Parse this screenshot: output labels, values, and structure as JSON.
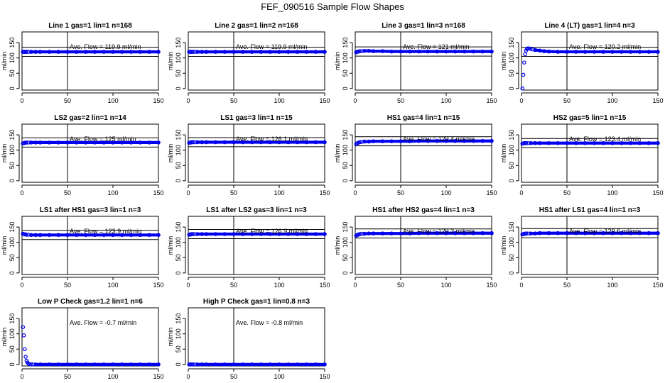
{
  "title": "FEF_090516  Sample Flow Shapes",
  "chart_data": [
    {
      "type": "scatter",
      "title": "Line 1 gas=1 lin=1 n=168",
      "ylabel": "ml/min",
      "xlim": [
        0,
        150
      ],
      "ylim": [
        -5,
        185
      ],
      "xticks": [
        0,
        50,
        100,
        150
      ],
      "yticks": [
        0,
        50,
        100,
        150
      ],
      "vline": 50,
      "hlines": [
        105,
        135
      ],
      "annotation": "Ave. Flow =  119.9  ml/min",
      "series": [
        {
          "x": [
            1,
            2,
            3,
            4,
            5,
            7,
            10,
            15,
            20,
            30,
            40,
            50,
            60,
            70,
            80,
            90,
            100,
            110,
            120,
            130,
            140,
            150
          ],
          "y": [
            119.9,
            119.9,
            119.9,
            119.9,
            119.9,
            119.9,
            119.9,
            119.9,
            119.9,
            119.9,
            119.9,
            119.9,
            119.9,
            119.9,
            119.9,
            119.9,
            119.9,
            119.9,
            119.9,
            119.9,
            119.9,
            119.9
          ]
        }
      ]
    },
    {
      "type": "scatter",
      "title": "Line 2 gas=1 lin=2 n=168",
      "ylabel": "ml/min",
      "xlim": [
        0,
        150
      ],
      "ylim": [
        -5,
        185
      ],
      "xticks": [
        0,
        50,
        100,
        150
      ],
      "yticks": [
        0,
        50,
        100,
        150
      ],
      "vline": 50,
      "hlines": [
        105,
        135
      ],
      "annotation": "Ave. Flow =  119.9  ml/min",
      "series": [
        {
          "x": [
            1,
            2,
            3,
            4,
            5,
            7,
            10,
            15,
            20,
            30,
            40,
            50,
            60,
            70,
            80,
            90,
            100,
            110,
            120,
            130,
            140,
            150
          ],
          "y": [
            119.9,
            119.9,
            119.9,
            119.9,
            119.9,
            119.9,
            119.9,
            119.9,
            119.9,
            119.9,
            119.9,
            119.9,
            119.9,
            119.9,
            119.9,
            119.9,
            119.9,
            119.9,
            119.9,
            119.9,
            119.9,
            119.9
          ]
        }
      ]
    },
    {
      "type": "scatter",
      "title": "Line 3 gas=1 lin=3 n=168",
      "ylabel": "ml/min",
      "xlim": [
        0,
        150
      ],
      "ylim": [
        -5,
        185
      ],
      "xticks": [
        0,
        50,
        100,
        150
      ],
      "yticks": [
        0,
        50,
        100,
        150
      ],
      "vline": 50,
      "hlines": [
        106,
        136
      ],
      "annotation": "Ave. Flow =  121  ml/min",
      "series": [
        {
          "x": [
            1,
            2,
            3,
            4,
            5,
            7,
            10,
            15,
            20,
            30,
            40,
            50,
            60,
            70,
            80,
            90,
            100,
            110,
            120,
            130,
            140,
            150
          ],
          "y": [
            118,
            120,
            121,
            121,
            122,
            122,
            123,
            123,
            122,
            122,
            121,
            121,
            121,
            121,
            121,
            121,
            121,
            121,
            121,
            121,
            121,
            121
          ]
        }
      ]
    },
    {
      "type": "scatter",
      "title": "Line 4 (LT) gas=1 lin=4 n=3",
      "ylabel": "ml/min",
      "xlim": [
        0,
        150
      ],
      "ylim": [
        -5,
        185
      ],
      "xticks": [
        0,
        50,
        100,
        150
      ],
      "yticks": [
        0,
        50,
        100,
        150
      ],
      "vline": 50,
      "hlines": [
        105,
        135
      ],
      "annotation": "Ave. Flow =  120.2  ml/min",
      "series": [
        {
          "x": [
            1,
            2,
            3,
            4,
            5,
            6,
            7,
            8,
            10,
            12,
            15,
            20,
            25,
            30,
            40,
            50,
            60,
            70,
            80,
            90,
            100,
            110,
            120,
            130,
            140,
            150
          ],
          "y": [
            0,
            45,
            85,
            112,
            124,
            129,
            131,
            131,
            130,
            128,
            126,
            124,
            122,
            121,
            120,
            120,
            120,
            120,
            120,
            120,
            120,
            120,
            120,
            120,
            120,
            120
          ]
        }
      ]
    },
    {
      "type": "scatter",
      "title": "LS2 gas=2 lin=1 n=14",
      "ylabel": "ml/min",
      "xlim": [
        0,
        150
      ],
      "ylim": [
        -5,
        185
      ],
      "xticks": [
        0,
        50,
        100,
        150
      ],
      "yticks": [
        0,
        50,
        100,
        150
      ],
      "vline": 50,
      "hlines": [
        110,
        140
      ],
      "annotation": "Ave. Flow =  125  ml/min",
      "series": [
        {
          "x": [
            1,
            2,
            3,
            4,
            5,
            7,
            10,
            15,
            20,
            30,
            40,
            50,
            60,
            70,
            80,
            90,
            100,
            110,
            120,
            130,
            140,
            150
          ],
          "y": [
            122,
            123,
            124,
            124,
            125,
            125,
            125,
            125,
            125,
            125,
            125,
            125,
            125,
            125,
            125,
            125,
            125,
            125,
            125,
            125,
            125,
            125
          ]
        }
      ]
    },
    {
      "type": "scatter",
      "title": "LS1 gas=3 lin=1 n=15",
      "ylabel": "ml/min",
      "xlim": [
        0,
        150
      ],
      "ylim": [
        -5,
        185
      ],
      "xticks": [
        0,
        50,
        100,
        150
      ],
      "yticks": [
        0,
        50,
        100,
        150
      ],
      "vline": 50,
      "hlines": [
        111,
        141
      ],
      "annotation": "Ave. Flow =  126.1  ml/min",
      "series": [
        {
          "x": [
            1,
            2,
            3,
            4,
            5,
            7,
            10,
            15,
            20,
            30,
            40,
            50,
            60,
            70,
            80,
            90,
            100,
            110,
            120,
            130,
            140,
            150
          ],
          "y": [
            124,
            125,
            125,
            126,
            126,
            126,
            126,
            126,
            126,
            126,
            126,
            126,
            126,
            126,
            126,
            126,
            126,
            126,
            126,
            126,
            126,
            126
          ]
        }
      ]
    },
    {
      "type": "scatter",
      "title": "HS1 gas=4 lin=1 n=15",
      "ylabel": "ml/min",
      "xlim": [
        0,
        150
      ],
      "ylim": [
        -5,
        185
      ],
      "xticks": [
        0,
        50,
        100,
        150
      ],
      "yticks": [
        0,
        50,
        100,
        150
      ],
      "vline": 50,
      "hlines": [
        114,
        144
      ],
      "annotation": "Ave. Flow =  129.4  ml/min",
      "series": [
        {
          "x": [
            1,
            2,
            3,
            4,
            5,
            7,
            10,
            15,
            20,
            30,
            40,
            50,
            60,
            70,
            80,
            90,
            100,
            110,
            120,
            130,
            140,
            150
          ],
          "y": [
            120,
            122,
            124,
            125,
            126,
            127,
            128,
            128,
            129,
            129,
            129,
            129,
            129,
            130,
            130,
            130,
            130,
            130,
            130,
            130,
            130,
            130
          ]
        }
      ]
    },
    {
      "type": "scatter",
      "title": "HS2 gas=5 lin=1 n=15",
      "ylabel": "ml/min",
      "xlim": [
        0,
        150
      ],
      "ylim": [
        -5,
        185
      ],
      "xticks": [
        0,
        50,
        100,
        150
      ],
      "yticks": [
        0,
        50,
        100,
        150
      ],
      "vline": 50,
      "hlines": [
        108,
        138
      ],
      "annotation": "Ave. Flow =  123.4  ml/min",
      "series": [
        {
          "x": [
            1,
            2,
            3,
            4,
            5,
            7,
            10,
            15,
            20,
            30,
            40,
            50,
            60,
            70,
            80,
            90,
            100,
            110,
            120,
            130,
            140,
            150
          ],
          "y": [
            121,
            122,
            123,
            123,
            123,
            123,
            123,
            123,
            123,
            123,
            123,
            123,
            123,
            123,
            123,
            123,
            123,
            123,
            123,
            123,
            123,
            123
          ]
        }
      ]
    },
    {
      "type": "scatter",
      "title": "LS1 after HS1 gas=3 lin=1 n=3",
      "ylabel": "ml/min",
      "xlim": [
        0,
        150
      ],
      "ylim": [
        -5,
        185
      ],
      "xticks": [
        0,
        50,
        100,
        150
      ],
      "yticks": [
        0,
        50,
        100,
        150
      ],
      "vline": 50,
      "hlines": [
        109,
        139
      ],
      "annotation": "Ave. Flow =  123.9  ml/min",
      "series": [
        {
          "x": [
            1,
            2,
            3,
            4,
            5,
            7,
            10,
            15,
            20,
            30,
            40,
            50,
            60,
            70,
            80,
            90,
            100,
            110,
            120,
            130,
            140,
            150
          ],
          "y": [
            128,
            127,
            126,
            126,
            125,
            125,
            124,
            124,
            124,
            124,
            124,
            124,
            124,
            124,
            124,
            124,
            124,
            124,
            124,
            124,
            124,
            124
          ]
        }
      ]
    },
    {
      "type": "scatter",
      "title": "LS1 after LS2 gas=3 lin=1 n=3",
      "ylabel": "ml/min",
      "xlim": [
        0,
        150
      ],
      "ylim": [
        -5,
        185
      ],
      "xticks": [
        0,
        50,
        100,
        150
      ],
      "yticks": [
        0,
        50,
        100,
        150
      ],
      "vline": 50,
      "hlines": [
        112,
        142
      ],
      "annotation": "Ave. Flow =  126.9  ml/min",
      "series": [
        {
          "x": [
            1,
            2,
            3,
            4,
            5,
            7,
            10,
            15,
            20,
            30,
            40,
            50,
            60,
            70,
            80,
            90,
            100,
            110,
            120,
            130,
            140,
            150
          ],
          "y": [
            125,
            126,
            126,
            127,
            127,
            127,
            127,
            127,
            127,
            127,
            127,
            127,
            127,
            127,
            127,
            127,
            127,
            127,
            127,
            127,
            127,
            127
          ]
        }
      ]
    },
    {
      "type": "scatter",
      "title": "HS1 after HS2 gas=4 lin=1 n=3",
      "ylabel": "ml/min",
      "xlim": [
        0,
        150
      ],
      "ylim": [
        -5,
        185
      ],
      "xticks": [
        0,
        50,
        100,
        150
      ],
      "yticks": [
        0,
        50,
        100,
        150
      ],
      "vline": 50,
      "hlines": [
        114,
        144
      ],
      "annotation": "Ave. Flow =  129.3  ml/min",
      "series": [
        {
          "x": [
            1,
            2,
            3,
            4,
            5,
            7,
            10,
            15,
            20,
            30,
            40,
            50,
            60,
            70,
            80,
            90,
            100,
            110,
            120,
            130,
            140,
            150
          ],
          "y": [
            122,
            124,
            125,
            126,
            127,
            128,
            128,
            129,
            129,
            129,
            129,
            129,
            129,
            130,
            130,
            130,
            130,
            130,
            130,
            130,
            130,
            130
          ]
        }
      ]
    },
    {
      "type": "scatter",
      "title": "HS1 after LS1 gas=4 lin=1 n=3",
      "ylabel": "ml/min",
      "xlim": [
        0,
        150
      ],
      "ylim": [
        -5,
        185
      ],
      "xticks": [
        0,
        50,
        100,
        150
      ],
      "yticks": [
        0,
        50,
        100,
        150
      ],
      "vline": 50,
      "hlines": [
        115,
        145
      ],
      "annotation": "Ave. Flow =  129.6  ml/min",
      "series": [
        {
          "x": [
            1,
            2,
            3,
            4,
            5,
            7,
            10,
            15,
            20,
            30,
            40,
            50,
            60,
            70,
            80,
            90,
            100,
            110,
            120,
            130,
            140,
            150
          ],
          "y": [
            126,
            127,
            128,
            128,
            129,
            129,
            129,
            129,
            130,
            130,
            130,
            130,
            130,
            130,
            130,
            130,
            130,
            130,
            130,
            130,
            130,
            130
          ]
        }
      ]
    },
    {
      "type": "scatter",
      "title": "Low P Check gas=1.2 lin=1 n=6",
      "ylabel": "ml/min",
      "xlim": [
        0,
        150
      ],
      "ylim": [
        -5,
        185
      ],
      "xticks": [
        0,
        50,
        100,
        150
      ],
      "yticks": [
        0,
        50,
        100,
        150
      ],
      "vline": 50,
      "hlines": [
        -5
      ],
      "annotation": "Ave. Flow =  -0.7  ml/min",
      "series": [
        {
          "x": [
            1,
            2,
            3,
            4,
            5,
            6,
            7,
            8,
            10,
            12,
            15,
            20,
            30,
            40,
            50,
            60,
            70,
            80,
            90,
            100,
            110,
            120,
            130,
            140,
            150
          ],
          "y": [
            122,
            95,
            50,
            25,
            12,
            6,
            3,
            1,
            0,
            0,
            0,
            0,
            0,
            0,
            0,
            0,
            0,
            0,
            0,
            0,
            0,
            0,
            0,
            0,
            0
          ]
        }
      ]
    },
    {
      "type": "scatter",
      "title": "High P Check gas=1 lin=0.8 n=3",
      "ylabel": "ml/min",
      "xlim": [
        0,
        150
      ],
      "ylim": [
        -5,
        185
      ],
      "xticks": [
        0,
        50,
        100,
        150
      ],
      "yticks": [
        0,
        50,
        100,
        150
      ],
      "vline": 50,
      "hlines": [
        -5
      ],
      "annotation": "Ave. Flow =  -0.8  ml/min",
      "series": [
        {
          "x": [
            1,
            2,
            3,
            4,
            5,
            7,
            10,
            15,
            20,
            30,
            40,
            50,
            60,
            70,
            80,
            90,
            100,
            110,
            120,
            130,
            140,
            150
          ],
          "y": [
            0,
            0,
            0,
            0,
            0,
            0,
            0,
            0,
            0,
            0,
            0,
            0,
            0,
            0,
            0,
            0,
            0,
            0,
            0,
            0,
            0,
            0
          ]
        }
      ]
    }
  ]
}
